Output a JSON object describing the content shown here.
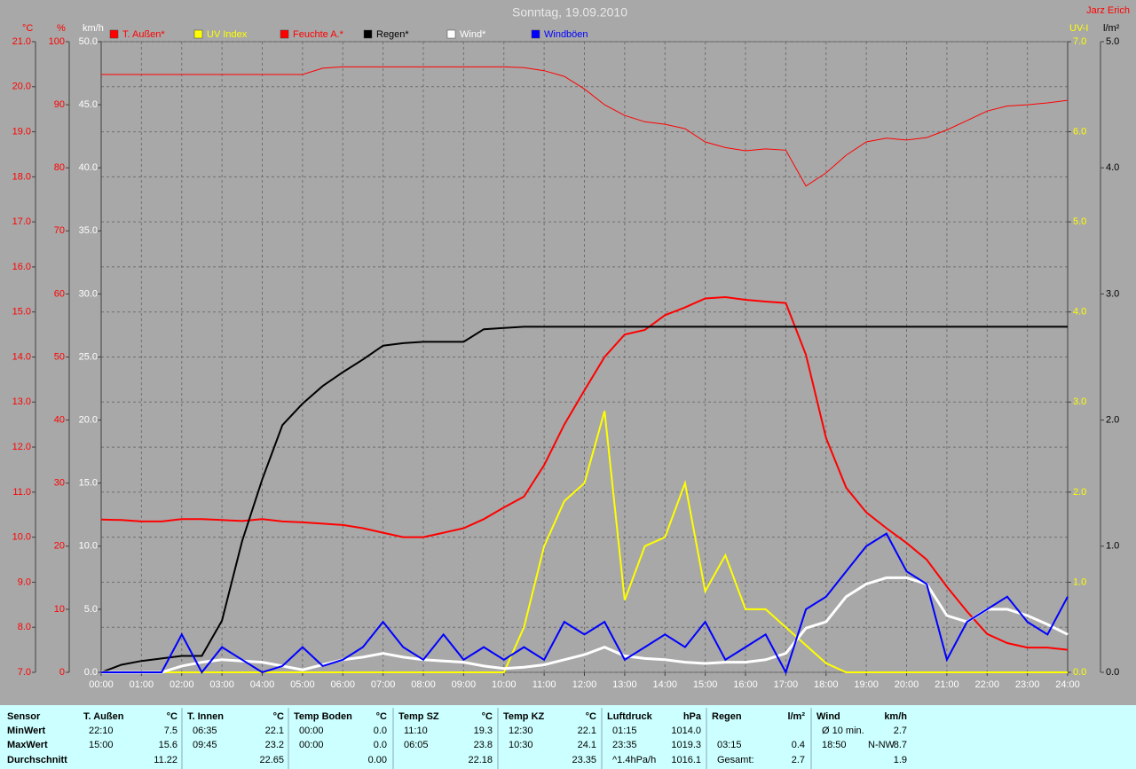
{
  "chart_data": {
    "type": "line",
    "title": "Sonntag, 19.09.2010",
    "author": "Jarz Erich",
    "x": [
      0,
      0.5,
      1,
      1.5,
      2,
      2.5,
      3,
      3.5,
      4,
      4.5,
      5,
      5.5,
      6,
      6.5,
      7,
      7.5,
      8,
      8.5,
      9,
      9.5,
      10,
      10.5,
      11,
      11.5,
      12,
      12.5,
      13,
      13.5,
      14,
      14.5,
      15,
      15.5,
      16,
      16.5,
      17,
      17.5,
      18,
      18.5,
      19,
      19.5,
      20,
      20.5,
      21,
      21.5,
      22,
      22.5,
      23,
      23.5,
      24
    ],
    "xlim": [
      0,
      24
    ],
    "xticks": [
      {
        "value": 0,
        "label": "00:00"
      },
      {
        "value": 1,
        "label": "01:00"
      },
      {
        "value": 2,
        "label": "02:00"
      },
      {
        "value": 3,
        "label": "03:00"
      },
      {
        "value": 4,
        "label": "04:00"
      },
      {
        "value": 5,
        "label": "05:00"
      },
      {
        "value": 6,
        "label": "06:00"
      },
      {
        "value": 7,
        "label": "07:00"
      },
      {
        "value": 8,
        "label": "08:00"
      },
      {
        "value": 9,
        "label": "09:00"
      },
      {
        "value": 10,
        "label": "10:00"
      },
      {
        "value": 11,
        "label": "11:00"
      },
      {
        "value": 12,
        "label": "12:00"
      },
      {
        "value": 13,
        "label": "13:00"
      },
      {
        "value": 14,
        "label": "14:00"
      },
      {
        "value": 15,
        "label": "15:00"
      },
      {
        "value": 16,
        "label": "16:00"
      },
      {
        "value": 17,
        "label": "17:00"
      },
      {
        "value": 18,
        "label": "18:00"
      },
      {
        "value": 19,
        "label": "19:00"
      },
      {
        "value": 20,
        "label": "20:00"
      },
      {
        "value": 21,
        "label": "21:00"
      },
      {
        "value": 22,
        "label": "22:00"
      },
      {
        "value": 23,
        "label": "23:00"
      },
      {
        "value": 24,
        "label": "24:00"
      }
    ],
    "grid": true,
    "axes": [
      {
        "unit": "°C",
        "color": "#ff0000",
        "lim": [
          7,
          21
        ],
        "ticks": [
          {
            "value": 21,
            "label": "21.0"
          },
          {
            "value": 20,
            "label": "20.0"
          },
          {
            "value": 19,
            "label": "19.0"
          },
          {
            "value": 18,
            "label": "18.0"
          },
          {
            "value": 17,
            "label": "17.0"
          },
          {
            "value": 16,
            "label": "16.0"
          },
          {
            "value": 15,
            "label": "15.0"
          },
          {
            "value": 14,
            "label": "14.0"
          },
          {
            "value": 13,
            "label": "13.0"
          },
          {
            "value": 12,
            "label": "12.0"
          },
          {
            "value": 11,
            "label": "11.0"
          },
          {
            "value": 10,
            "label": "10.0"
          },
          {
            "value": 9,
            "label": "9.0"
          },
          {
            "value": 8,
            "label": "8.0"
          },
          {
            "value": 7,
            "label": "7.0"
          }
        ]
      },
      {
        "unit": "%",
        "color": "#ff0000",
        "lim": [
          0,
          100
        ],
        "ticks": [
          100,
          90,
          80,
          70,
          60,
          50,
          40,
          30,
          20,
          10,
          0
        ]
      },
      {
        "unit": "km/h",
        "color": "#ffffff",
        "lim": [
          0,
          50
        ],
        "ticks": [
          {
            "value": 50,
            "label": "50.0"
          },
          {
            "value": 45,
            "label": "45.0"
          },
          {
            "value": 40,
            "label": "40.0"
          },
          {
            "value": 35,
            "label": "35.0"
          },
          {
            "value": 30,
            "label": "30.0"
          },
          {
            "value": 25,
            "label": "25.0"
          },
          {
            "value": 20,
            "label": "20.0"
          },
          {
            "value": 15,
            "label": "15.0"
          },
          {
            "value": 10,
            "label": "10.0"
          },
          {
            "value": 5,
            "label": "5.0"
          },
          {
            "value": 0,
            "label": "0.0"
          }
        ]
      },
      {
        "unit": "UV-I",
        "color": "#ffff00",
        "lim": [
          0,
          7
        ],
        "ticks": [
          {
            "value": 7,
            "label": "7.0"
          },
          {
            "value": 6,
            "label": "6.0"
          },
          {
            "value": 5,
            "label": "5.0"
          },
          {
            "value": 4,
            "label": "4.0"
          },
          {
            "value": 3,
            "label": "3.0"
          },
          {
            "value": 2,
            "label": "2.0"
          },
          {
            "value": 1,
            "label": "1.0"
          },
          {
            "value": 0,
            "label": "0.0"
          }
        ]
      },
      {
        "unit": "l/m²",
        "color": "#000000",
        "lim": [
          0,
          5
        ],
        "ticks": [
          {
            "value": 5,
            "label": "5.0"
          },
          {
            "value": 4,
            "label": "4.0"
          },
          {
            "value": 3,
            "label": "3.0"
          },
          {
            "value": 2,
            "label": "2.0"
          },
          {
            "value": 1,
            "label": "1.0"
          },
          {
            "value": 0,
            "label": "0.0"
          }
        ]
      }
    ],
    "series": [
      {
        "name": "T. Außen*",
        "color": "#ff0000",
        "axis": "°C",
        "values": [
          10.39,
          10.38,
          10.35,
          10.35,
          10.4,
          10.4,
          10.38,
          10.36,
          10.4,
          10.35,
          10.33,
          10.3,
          10.27,
          10.2,
          10.1,
          10.0,
          10.0,
          10.1,
          10.2,
          10.4,
          10.66,
          10.9,
          11.6,
          12.5,
          13.26,
          14.0,
          14.5,
          14.6,
          14.93,
          15.1,
          15.3,
          15.33,
          15.27,
          15.23,
          15.2,
          14.05,
          12.2,
          11.1,
          10.55,
          10.2,
          9.87,
          9.5,
          8.9,
          8.35,
          7.85,
          7.65,
          7.55,
          7.55,
          7.5
        ]
      },
      {
        "name": "UV Index",
        "color": "#ffff00",
        "axis": "UV-I",
        "values": [
          0,
          0,
          0,
          0,
          0,
          0,
          0,
          0,
          0,
          0,
          0,
          0,
          0,
          0,
          0,
          0,
          0,
          0,
          0,
          0,
          0,
          0.5,
          1.4,
          1.9,
          2.1,
          2.9,
          0.8,
          1.4,
          1.5,
          2.1,
          0.9,
          1.3,
          0.7,
          0.7,
          0.5,
          0.3,
          0.1,
          0,
          0,
          0,
          0,
          0,
          0,
          0,
          0,
          0,
          0,
          0,
          0
        ]
      },
      {
        "name": "Feuchte A.*",
        "color": "#ff0000",
        "axis": "%",
        "values": [
          94.8,
          94.8,
          94.8,
          94.8,
          94.8,
          94.8,
          94.8,
          94.8,
          94.8,
          94.8,
          94.8,
          95.8,
          96,
          96,
          96,
          96,
          96,
          96,
          96,
          96,
          96,
          95.9,
          95.4,
          94.5,
          92.5,
          90,
          88.3,
          87.3,
          86.9,
          86.2,
          84.1,
          83.2,
          82.7,
          83,
          82.8,
          77.1,
          79.2,
          82,
          84.1,
          84.7,
          84.4,
          84.8,
          86,
          87.5,
          89,
          89.8,
          90,
          90.3,
          90.7
        ]
      },
      {
        "name": "Regen*",
        "color": "#000000",
        "axis": "l/m²",
        "values": [
          0,
          0.06,
          0.09,
          0.11,
          0.13,
          0.13,
          0.41,
          1.04,
          1.53,
          1.96,
          2.13,
          2.27,
          2.38,
          2.48,
          2.59,
          2.61,
          2.62,
          2.62,
          2.62,
          2.72,
          2.73,
          2.74,
          2.74,
          2.74,
          2.74,
          2.74,
          2.74,
          2.74,
          2.74,
          2.74,
          2.74,
          2.74,
          2.74,
          2.74,
          2.74,
          2.74,
          2.74,
          2.74,
          2.74,
          2.74,
          2.74,
          2.74,
          2.74,
          2.74,
          2.74,
          2.74,
          2.74,
          2.74,
          2.74
        ]
      },
      {
        "name": "Wind*",
        "color": "#ffffff",
        "axis": "km/h",
        "values": [
          0,
          0,
          0,
          0,
          0.5,
          0.8,
          1,
          0.9,
          0.8,
          0.5,
          0.2,
          0.6,
          1,
          1.2,
          1.5,
          1.2,
          1,
          0.9,
          0.8,
          0.5,
          0.3,
          0.4,
          0.6,
          1,
          1.4,
          2,
          1.3,
          1.1,
          1,
          0.8,
          0.7,
          0.8,
          0.8,
          1,
          1.5,
          3.5,
          4,
          6,
          7,
          7.5,
          7.5,
          7,
          4.5,
          4,
          5,
          5,
          4.5,
          3.8,
          3
        ]
      },
      {
        "name": "Windböen",
        "color": "#0000ff",
        "axis": "km/h",
        "values": [
          0,
          0,
          0,
          0,
          3,
          0,
          2,
          1,
          0,
          0.5,
          2,
          0.5,
          1,
          2,
          4,
          2,
          1,
          3,
          1,
          2,
          1,
          2,
          1,
          4,
          3,
          4,
          1,
          2,
          3,
          2,
          4,
          1,
          2,
          3,
          0,
          5,
          6,
          8,
          10,
          11,
          8,
          7,
          1,
          4,
          5,
          6,
          4,
          3,
          6
        ]
      }
    ]
  },
  "stats": {
    "sensor_labels": [
      "Sensor",
      "MinWert",
      "MaxWert",
      "Durchschnitt"
    ],
    "groups": [
      {
        "header": [
          "T. Außen",
          "°C"
        ],
        "rows": [
          [
            "22:10",
            "7.5"
          ],
          [
            "15:00",
            "15.6"
          ],
          [
            "11.22"
          ]
        ]
      },
      {
        "header": [
          "T. Innen",
          "°C"
        ],
        "rows": [
          [
            "06:35",
            "22.1"
          ],
          [
            "09:45",
            "23.2"
          ],
          [
            "22.65"
          ]
        ]
      },
      {
        "header": [
          "Temp Boden",
          "°C"
        ],
        "rows": [
          [
            "00:00",
            "0.0"
          ],
          [
            "00:00",
            "0.0"
          ],
          [
            "0.00"
          ]
        ]
      },
      {
        "header": [
          "Temp SZ",
          "°C"
        ],
        "rows": [
          [
            "11:10",
            "19.3"
          ],
          [
            "06:05",
            "23.8"
          ],
          [
            "22.18"
          ]
        ]
      },
      {
        "header": [
          "Temp KZ",
          "°C"
        ],
        "rows": [
          [
            "12:30",
            "22.1"
          ],
          [
            "10:30",
            "24.1"
          ],
          [
            "23.35"
          ]
        ]
      },
      {
        "header": [
          "Luftdruck",
          "hPa"
        ],
        "rows": [
          [
            "01:15",
            "1014.0"
          ],
          [
            "23:35",
            "1019.3"
          ],
          [
            "^1.4hPa/h",
            "1016.1"
          ]
        ]
      },
      {
        "header": [
          "Regen",
          "l/m²"
        ],
        "rows": [
          [],
          [
            "03:15",
            "0.4"
          ],
          [
            "Gesamt:",
            "2.7"
          ]
        ]
      },
      {
        "header": [
          "Wind",
          "km/h"
        ],
        "rows": [
          [
            "Ø 10 min.",
            "2.7"
          ],
          [
            "18:50",
            "N-NW",
            "8.7"
          ],
          [
            "1.9"
          ]
        ]
      }
    ]
  }
}
